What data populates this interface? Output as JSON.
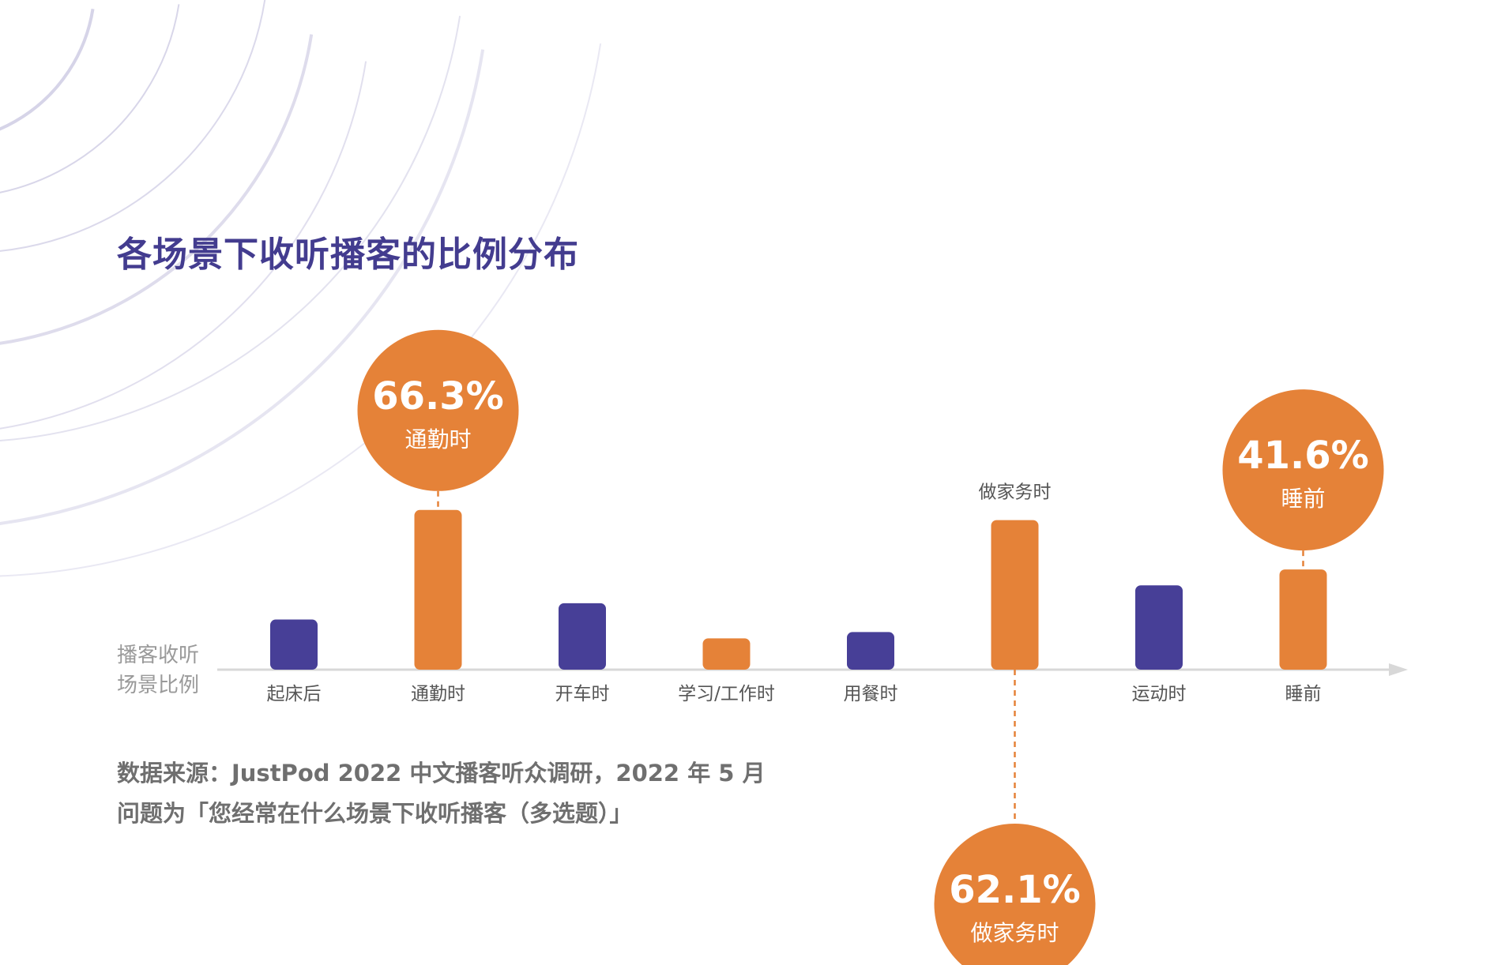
{
  "chart_data": {
    "type": "bar",
    "title": "各场景下收听播客的比例分布",
    "ylabel_lines": [
      "播客收听",
      "场景比例"
    ],
    "categories": [
      "起床后",
      "通勤时",
      "开车时",
      "学习/工作时",
      "用餐时",
      "做家务时",
      "运动时",
      "睡前"
    ],
    "values": [
      20.8,
      66.3,
      27.6,
      13.0,
      15.6,
      62.1,
      35.0,
      41.6
    ],
    "highlighted": [
      false,
      true,
      false,
      true,
      false,
      true,
      false,
      true
    ],
    "ylim": [
      0,
      70
    ],
    "grid": false,
    "callouts": [
      {
        "index": 1,
        "value_label": "66.3%",
        "category_label": "通勤时",
        "placement": "above"
      },
      {
        "index": 5,
        "value_label": "62.1%",
        "category_label": "做家务时",
        "placement": "below"
      },
      {
        "index": 7,
        "value_label": "41.6%",
        "category_label": "睡前",
        "placement": "above"
      }
    ]
  },
  "colors": {
    "primary": "#473f97",
    "accent": "#e58238",
    "title": "#433c8f",
    "axis": "#d8d8d8",
    "text": "#555555",
    "muted": "#9a9a9a",
    "arcs": "#c8c5e0"
  },
  "source": {
    "line1": "数据来源：JustPod 2022 中文播客听众调研，2022 年 5 月",
    "line2": "问题为「您经常在什么场景下收听播客（多选题）」"
  }
}
